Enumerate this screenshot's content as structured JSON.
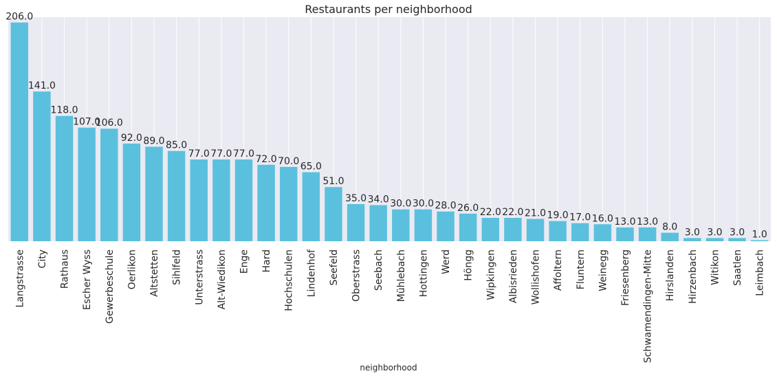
{
  "chart_data": {
    "type": "bar",
    "title": "Restaurants per neighborhood",
    "xlabel": "neighborhood",
    "ylabel": "",
    "categories": [
      "Langstrasse",
      "City",
      "Rathaus",
      "Escher Wyss",
      "Gewerbeschule",
      "Oerlikon",
      "Altstetten",
      "Sihlfeld",
      "Unterstrass",
      "Alt-Wiedikon",
      "Enge",
      "Hard",
      "Hochschulen",
      "Lindenhof",
      "Seefeld",
      "Oberstrass",
      "Seebach",
      "Mühlebach",
      "Hottingen",
      "Werd",
      "Höngg",
      "Wipkingen",
      "Albisrieden",
      "Wollishofen",
      "Affoltern",
      "Fluntern",
      "Weinegg",
      "Friesenberg",
      "Schwamendingen-Mitte",
      "Hirslanden",
      "Hirzenbach",
      "Witikon",
      "Saatlen",
      "Leimbach"
    ],
    "values": [
      206,
      141,
      118,
      107,
      106,
      92,
      89,
      85,
      77,
      77,
      77,
      72,
      70,
      65,
      51,
      35,
      34,
      30,
      30,
      28,
      26,
      22,
      22,
      21,
      19,
      17,
      16,
      13,
      13,
      8,
      3,
      3,
      3,
      1
    ],
    "value_labels": [
      "206.0",
      "141.0",
      "118.0",
      "107.0",
      "106.0",
      "92.0",
      "89.0",
      "85.0",
      "77.0",
      "77.0",
      "77.0",
      "72.0",
      "70.0",
      "65.0",
      "51.0",
      "35.0",
      "34.0",
      "30.0",
      "30.0",
      "28.0",
      "26.0",
      "22.0",
      "22.0",
      "21.0",
      "19.0",
      "17.0",
      "16.0",
      "13.0",
      "13.0",
      "8.0",
      "3.0",
      "3.0",
      "3.0",
      "1.0"
    ],
    "ylim": [
      0,
      211
    ],
    "grid": true,
    "bar_color": "#5bc0de",
    "background_color": "#eaeaf2",
    "grid_color": "#ffffff"
  }
}
